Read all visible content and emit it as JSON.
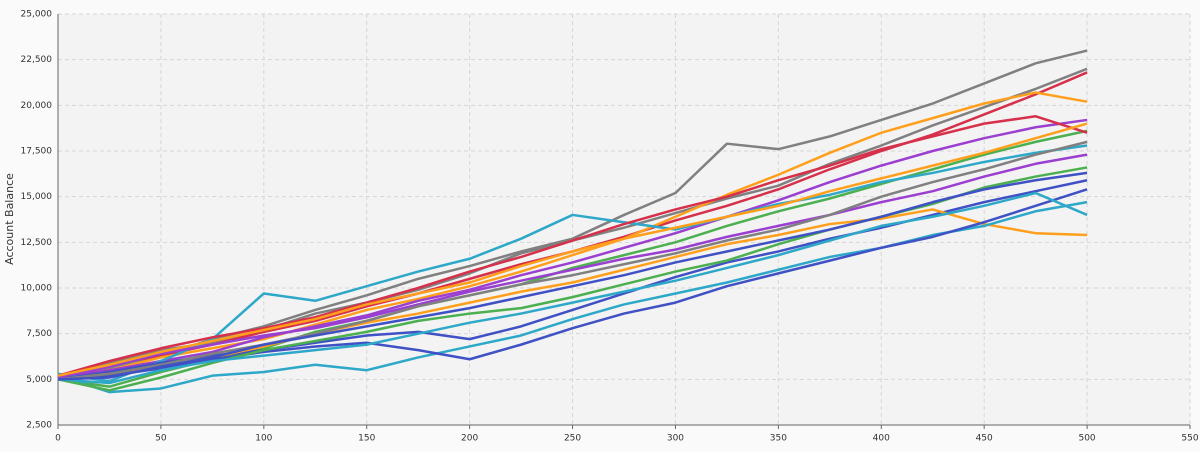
{
  "chart_data": {
    "type": "line",
    "y_label": "Account Balance",
    "x": [
      0,
      25,
      50,
      75,
      100,
      125,
      150,
      175,
      200,
      225,
      250,
      275,
      300,
      325,
      350,
      375,
      400,
      425,
      450,
      475,
      500
    ],
    "series": [
      {
        "color": "#808080",
        "values": [
          5000,
          5600,
          6300,
          7200,
          7900,
          8800,
          9600,
          10500,
          11200,
          12000,
          12700,
          14000,
          15200,
          17900,
          17600,
          18300,
          19200,
          20100,
          21200,
          22300,
          23000
        ]
      },
      {
        "color": "#808080",
        "values": [
          5200,
          5900,
          6600,
          7000,
          7700,
          8600,
          9200,
          9900,
          10800,
          11900,
          12600,
          13300,
          14100,
          14900,
          15600,
          16800,
          17800,
          18900,
          19900,
          20900,
          22000
        ]
      },
      {
        "color": "#d6304a",
        "values": [
          5100,
          5800,
          6300,
          6900,
          7600,
          8200,
          9000,
          9700,
          10500,
          11300,
          12000,
          12800,
          13700,
          14500,
          15400,
          16500,
          17500,
          18400,
          19500,
          20600,
          21800
        ]
      },
      {
        "color": "#ff9f1c",
        "values": [
          5000,
          5500,
          6200,
          6700,
          7200,
          8000,
          8800,
          9400,
          10100,
          10900,
          11800,
          12700,
          13900,
          15100,
          16200,
          17400,
          18500,
          19300,
          20100,
          20700,
          20200
        ]
      },
      {
        "color": "#9b3fd0",
        "values": [
          5100,
          5500,
          6000,
          6500,
          7300,
          7900,
          8500,
          9300,
          9900,
          10700,
          11400,
          12200,
          13000,
          13900,
          14800,
          15800,
          16700,
          17500,
          18200,
          18800,
          19200
        ]
      },
      {
        "color": "#4caf50",
        "values": [
          5000,
          4600,
          5400,
          6100,
          6700,
          7600,
          8200,
          9000,
          9600,
          10200,
          11100,
          11800,
          12500,
          13400,
          14200,
          14900,
          15700,
          16500,
          17300,
          18000,
          18600
        ]
      },
      {
        "color": "#2ea8c8",
        "values": [
          5300,
          4900,
          6000,
          7200,
          9700,
          9300,
          10100,
          10900,
          11600,
          12700,
          14000,
          13600,
          13200,
          13900,
          14600,
          15100,
          15800,
          16300,
          16900,
          17400,
          17800
        ]
      },
      {
        "color": "#3f51c4",
        "values": [
          5000,
          5400,
          5900,
          6300,
          6600,
          7000,
          7400,
          7600,
          7200,
          7900,
          8800,
          9700,
          10600,
          11400,
          12000,
          12700,
          13300,
          14000,
          14700,
          15300,
          15900
        ]
      },
      {
        "color": "#ff9f1c",
        "values": [
          5000,
          5300,
          5700,
          6200,
          6800,
          7500,
          8100,
          8600,
          9200,
          9800,
          10300,
          11000,
          11700,
          12400,
          12900,
          13500,
          13800,
          14300,
          13500,
          13000,
          12900
        ]
      },
      {
        "color": "#2ea8c8",
        "values": [
          5200,
          4300,
          4500,
          5200,
          5400,
          5800,
          5500,
          6200,
          6800,
          7400,
          8300,
          9100,
          9700,
          10300,
          11000,
          11700,
          12200,
          12900,
          13400,
          14200,
          14700
        ]
      },
      {
        "color": "#3f51c4",
        "values": [
          5100,
          5200,
          5600,
          6100,
          6500,
          6800,
          7000,
          6600,
          6100,
          6900,
          7800,
          8600,
          9200,
          10100,
          10800,
          11500,
          12200,
          12800,
          13600,
          14500,
          15400
        ]
      },
      {
        "color": "#4caf50",
        "values": [
          5000,
          4400,
          5100,
          5900,
          6600,
          7100,
          7600,
          8200,
          8600,
          8900,
          9500,
          10200,
          10900,
          11500,
          12400,
          13200,
          13900,
          14600,
          15500,
          16100,
          16600
        ]
      },
      {
        "color": "#d6304a",
        "values": [
          5200,
          6000,
          6700,
          7300,
          7800,
          8400,
          9200,
          10000,
          10900,
          11700,
          12600,
          13500,
          14300,
          15000,
          15900,
          16700,
          17600,
          18300,
          19000,
          19400,
          18500
        ]
      },
      {
        "color": "#9b3fd0",
        "values": [
          5100,
          5700,
          6400,
          6900,
          7400,
          7800,
          8400,
          9100,
          9800,
          10400,
          11000,
          11600,
          12100,
          12800,
          13400,
          14000,
          14700,
          15300,
          16100,
          16800,
          17300
        ]
      },
      {
        "color": "#808080",
        "values": [
          5000,
          5300,
          5800,
          6400,
          6900,
          7500,
          8200,
          9000,
          9600,
          10200,
          10700,
          11300,
          11900,
          12600,
          13200,
          14000,
          15000,
          15800,
          16500,
          17300,
          18000
        ]
      },
      {
        "color": "#ff9f1c",
        "values": [
          5200,
          5800,
          6500,
          7100,
          7700,
          8300,
          9100,
          9700,
          10300,
          11200,
          12000,
          12700,
          13300,
          13900,
          14500,
          15300,
          16000,
          16700,
          17400,
          18200,
          19000
        ]
      },
      {
        "color": "#2ea8c8",
        "values": [
          5000,
          4800,
          5500,
          6000,
          6300,
          6600,
          6900,
          7500,
          8100,
          8600,
          9200,
          9800,
          10400,
          11100,
          11800,
          12600,
          13400,
          13900,
          14500,
          15200,
          14000
        ]
      },
      {
        "color": "#3f51c4",
        "values": [
          5000,
          5100,
          5700,
          6200,
          6900,
          7400,
          7900,
          8400,
          8900,
          9500,
          10100,
          10700,
          11400,
          12000,
          12600,
          13200,
          13900,
          14700,
          15400,
          15900,
          16300
        ]
      }
    ],
    "xlim": [
      0,
      550
    ],
    "xticks": [
      0,
      50,
      100,
      150,
      200,
      250,
      300,
      350,
      400,
      450,
      500,
      550
    ],
    "ylim": [
      2500,
      25000
    ],
    "yticks": [
      {
        "value": 2500,
        "label": "2,500"
      },
      {
        "value": 5000,
        "label": "5,000"
      },
      {
        "value": 7500,
        "label": "7,500"
      },
      {
        "value": 10000,
        "label": "10,000"
      },
      {
        "value": 12500,
        "label": "12,500"
      },
      {
        "value": 15000,
        "label": "15,000"
      },
      {
        "value": 17500,
        "label": "17,500"
      },
      {
        "value": 20000,
        "label": "20,000"
      },
      {
        "value": 22500,
        "label": "22,500"
      },
      {
        "value": 25000,
        "label": "25,000"
      }
    ],
    "grid": true
  }
}
